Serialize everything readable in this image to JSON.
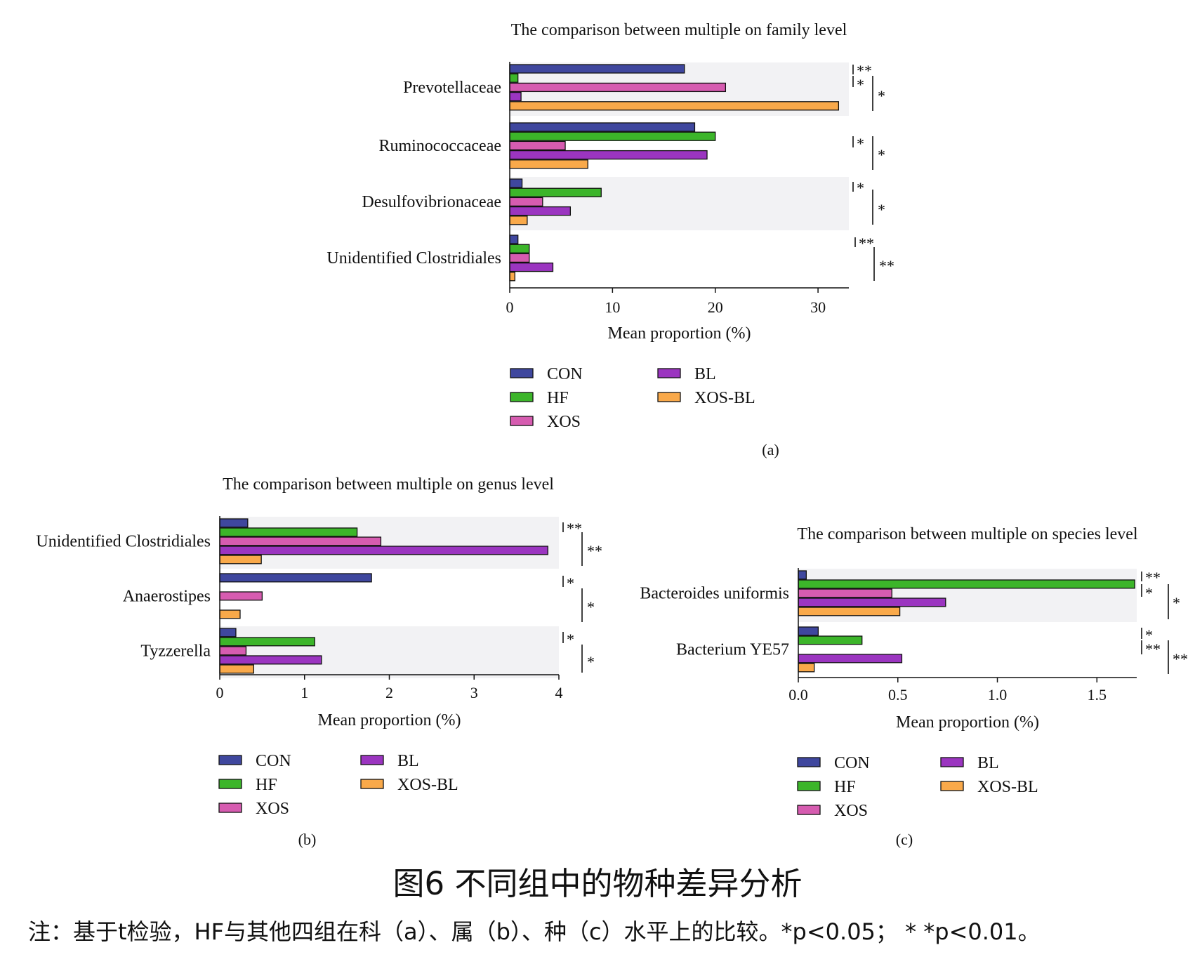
{
  "caption": "图6 不同组中的物种差异分析",
  "note": "注：基于t检验，HF与其他四组在科（a）、属（b）、种（c）水平上的比较。*p<0.05； * *p<0.01。",
  "group_colors": {
    "CON": "#3f479e",
    "HF": "#3cb52a",
    "XOS": "#d65cb0",
    "BL": "#9b35c0",
    "XOS-BL": "#f9a94a"
  },
  "chart_data": [
    {
      "type": "bar",
      "orientation": "horizontal",
      "panel_label": "(a)",
      "title": "The comparison between multiple on family level",
      "xlabel": "Mean proportion (%)",
      "xlim": [
        0,
        33
      ],
      "xticks": [
        "0",
        "10",
        "20",
        "30"
      ],
      "legend": [
        "CON",
        "HF",
        "XOS",
        "BL",
        "XOS-BL"
      ],
      "categories": [
        "Prevotellaceae",
        "Ruminococcaceae",
        "Desulfovibrionaceae",
        "Unidentified Clostridiales"
      ],
      "series": [
        {
          "name": "CON",
          "values": [
            17.0,
            18.0,
            1.2,
            0.8
          ]
        },
        {
          "name": "HF",
          "values": [
            0.8,
            20.0,
            8.9,
            1.9
          ]
        },
        {
          "name": "XOS",
          "values": [
            21.0,
            5.4,
            3.2,
            1.9
          ]
        },
        {
          "name": "BL",
          "values": [
            1.1,
            19.2,
            5.9,
            4.2
          ]
        },
        {
          "name": "XOS-BL",
          "values": [
            32.0,
            7.6,
            1.7,
            0.5
          ]
        }
      ],
      "significance": [
        {
          "category": "Prevotellaceae",
          "marks": [
            "**",
            "*",
            "*"
          ]
        },
        {
          "category": "Ruminococcaceae",
          "marks": [
            "*",
            "*"
          ]
        },
        {
          "category": "Desulfovibrionaceae",
          "marks": [
            "*",
            "*"
          ]
        },
        {
          "category": "Unidentified Clostridiales",
          "marks": [
            "**",
            "**"
          ]
        }
      ]
    },
    {
      "type": "bar",
      "orientation": "horizontal",
      "panel_label": "(b)",
      "title": "The comparison between multiple on genus level",
      "xlabel": "Mean proportion (%)",
      "xlim": [
        0,
        4
      ],
      "xticks": [
        "0",
        "1",
        "2",
        "3",
        "4"
      ],
      "legend": [
        "CON",
        "HF",
        "XOS",
        "BL",
        "XOS-BL"
      ],
      "categories": [
        "Unidentified Clostridiales",
        "Anaerostipes",
        "Tyzzerella"
      ],
      "series": [
        {
          "name": "CON",
          "values": [
            0.33,
            1.79,
            0.19
          ]
        },
        {
          "name": "HF",
          "values": [
            1.62,
            0.0,
            1.12
          ]
        },
        {
          "name": "XOS",
          "values": [
            1.9,
            0.5,
            0.31
          ]
        },
        {
          "name": "BL",
          "values": [
            3.87,
            0.0,
            1.2
          ]
        },
        {
          "name": "XOS-BL",
          "values": [
            0.49,
            0.24,
            0.4
          ]
        }
      ],
      "significance": [
        {
          "category": "Unidentified Clostridiales",
          "marks": [
            "**",
            "**"
          ]
        },
        {
          "category": "Anaerostipes",
          "marks": [
            "*",
            "*"
          ]
        },
        {
          "category": "Tyzzerella",
          "marks": [
            "*",
            "*"
          ]
        }
      ]
    },
    {
      "type": "bar",
      "orientation": "horizontal",
      "panel_label": "(c)",
      "title": "The comparison between multiple on species level",
      "xlabel": "Mean proportion (%)",
      "xlim": [
        0,
        1.7
      ],
      "xticks": [
        "0.0",
        "0.5",
        "1.0",
        "1.5"
      ],
      "legend": [
        "CON",
        "HF",
        "XOS",
        "BL",
        "XOS-BL"
      ],
      "categories": [
        "Bacteroides uniformis",
        "Bacterium YE57"
      ],
      "series": [
        {
          "name": "CON",
          "values": [
            0.04,
            0.1
          ]
        },
        {
          "name": "HF",
          "values": [
            1.69,
            0.32
          ]
        },
        {
          "name": "XOS",
          "values": [
            0.47,
            0.0
          ]
        },
        {
          "name": "BL",
          "values": [
            0.74,
            0.52
          ]
        },
        {
          "name": "XOS-BL",
          "values": [
            0.51,
            0.08
          ]
        }
      ],
      "significance": [
        {
          "category": "Bacteroides uniformis",
          "marks": [
            "**",
            "*",
            "*"
          ]
        },
        {
          "category": "Bacterium YE57",
          "marks": [
            "*",
            "**",
            "**"
          ]
        }
      ]
    }
  ]
}
